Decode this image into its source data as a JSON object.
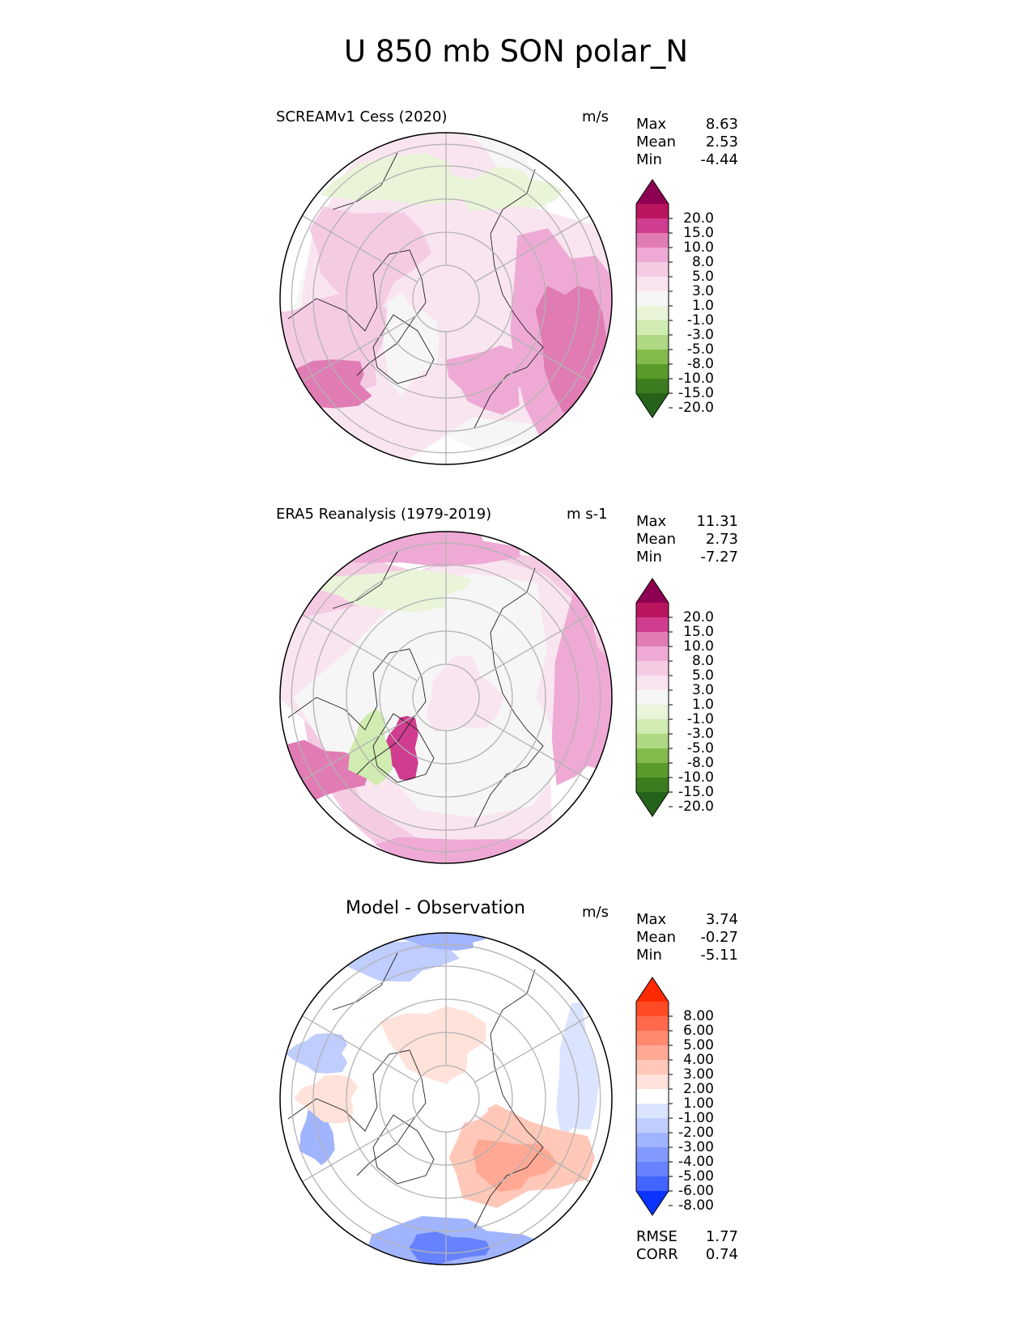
{
  "title": "U 850 mb SON polar_N",
  "chart_data": [
    {
      "type": "heatmap",
      "projection": "north polar stereographic",
      "title": "SCREAMv1 Cess (2020)",
      "units": "m/s",
      "stats": [
        {
          "label": "Max",
          "value": "8.63"
        },
        {
          "label": "Mean",
          "value": "2.53"
        },
        {
          "label": "Min",
          "value": "-4.44"
        }
      ],
      "colorbar": {
        "ticks": [
          "20.0",
          "15.0",
          "10.0",
          "8.0",
          "5.0",
          "3.0",
          "1.0",
          "-1.0",
          "-3.0",
          "-5.0",
          "-8.0",
          "-10.0",
          "-15.0",
          "-20.0"
        ],
        "colors": [
          "#8e0152",
          "#b9155f",
          "#d03c8f",
          "#e07cb3",
          "#eeaad4",
          "#f5cbe4",
          "#f9e5f0",
          "#f6f6f6",
          "#e9f4d8",
          "#d0ecb0",
          "#aed881",
          "#84bb4d",
          "#5a9b2c",
          "#3b7d1e",
          "#25631a"
        ],
        "extend": "both"
      }
    },
    {
      "type": "heatmap",
      "projection": "north polar stereographic",
      "title": "ERA5 Reanalysis (1979-2019)",
      "units": "m s-1",
      "stats": [
        {
          "label": "Max",
          "value": "11.31"
        },
        {
          "label": "Mean",
          "value": "2.73"
        },
        {
          "label": "Min",
          "value": "-7.27"
        }
      ],
      "colorbar": {
        "ticks": [
          "20.0",
          "15.0",
          "10.0",
          "8.0",
          "5.0",
          "3.0",
          "1.0",
          "-1.0",
          "-3.0",
          "-5.0",
          "-8.0",
          "-10.0",
          "-15.0",
          "-20.0"
        ],
        "colors": [
          "#8e0152",
          "#b9155f",
          "#d03c8f",
          "#e07cb3",
          "#eeaad4",
          "#f5cbe4",
          "#f9e5f0",
          "#f6f6f6",
          "#e9f4d8",
          "#d0ecb0",
          "#aed881",
          "#84bb4d",
          "#5a9b2c",
          "#3b7d1e",
          "#25631a"
        ],
        "extend": "both"
      }
    },
    {
      "type": "heatmap",
      "projection": "north polar stereographic",
      "title": "Model - Observation",
      "units": "m/s",
      "stats": [
        {
          "label": "Max",
          "value": "3.74"
        },
        {
          "label": "Mean",
          "value": "-0.27"
        },
        {
          "label": "Min",
          "value": "-5.11"
        }
      ],
      "metrics": [
        {
          "label": "RMSE",
          "value": "1.77"
        },
        {
          "label": "CORR",
          "value": "0.74"
        }
      ],
      "colorbar": {
        "ticks": [
          "8.00",
          "6.00",
          "5.00",
          "4.00",
          "3.00",
          "2.00",
          "1.00",
          "-1.00",
          "-2.00",
          "-3.00",
          "-4.00",
          "-5.00",
          "-6.00",
          "-8.00"
        ],
        "colors": [
          "#ff2a00",
          "#ff4c26",
          "#ff6a4a",
          "#ff8a70",
          "#ffa994",
          "#ffc8b8",
          "#ffe2da",
          "#ffffff",
          "#dbe4ff",
          "#bfcdff",
          "#a1b4ff",
          "#829aff",
          "#6682ff",
          "#4264ff",
          "#0a33ff"
        ],
        "extend": "both"
      }
    }
  ]
}
